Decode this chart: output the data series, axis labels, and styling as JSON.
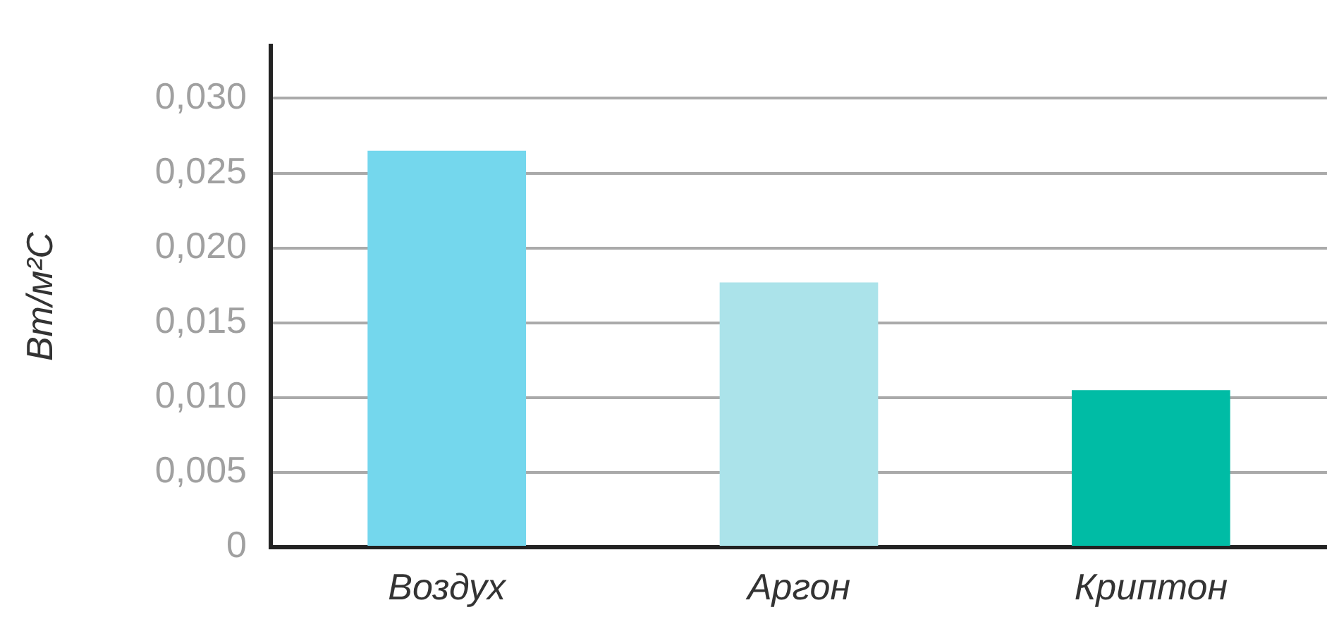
{
  "chart_data": {
    "type": "bar",
    "ylabel": "Вт/м²С",
    "categories": [
      "Воздух",
      "Аргон",
      "Криптон"
    ],
    "values": [
      0.0265,
      0.0177,
      0.0105
    ],
    "colors": [
      "#74d7ed",
      "#abe3ea",
      "#00bca5"
    ],
    "ylim": [
      0,
      0.0335
    ],
    "yticks": [
      0,
      {
        "value": 0.005,
        "label": "0,005"
      },
      {
        "value": 0.01,
        "label": "0,010"
      },
      {
        "value": 0.015,
        "label": "0,015"
      },
      {
        "value": 0.02,
        "label": "0,020"
      },
      {
        "value": 0.025,
        "label": "0,025"
      },
      {
        "value": 0.03,
        "label": "0,030"
      }
    ],
    "grid": "y"
  }
}
